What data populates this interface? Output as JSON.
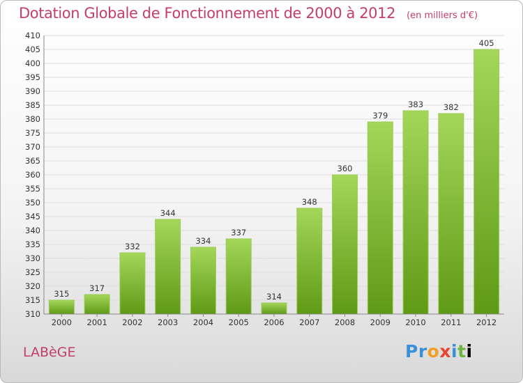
{
  "header": {
    "title": "Dotation Globale de Fonctionnement de 2000 à 2012",
    "unit": "(en milliers d'€)"
  },
  "footer": {
    "commune": "LABèGE",
    "logo_letters": [
      "P",
      "r",
      "o",
      "x",
      "i",
      "t",
      "i"
    ]
  },
  "colors": {
    "title": "#c43d6b",
    "bar_top": "#a4d65a",
    "bar_bottom": "#5f9a16",
    "grid": "#dddddd",
    "axis": "#888888"
  },
  "chart_data": {
    "type": "bar",
    "title": "Dotation Globale de Fonctionnement de 2000 à 2012",
    "subtitle": "(en milliers d'€)",
    "xlabel": "",
    "ylabel": "",
    "categories": [
      "2000",
      "2001",
      "2002",
      "2003",
      "2004",
      "2005",
      "2006",
      "2007",
      "2008",
      "2009",
      "2010",
      "2011",
      "2012"
    ],
    "values": [
      315,
      317,
      332,
      344,
      334,
      337,
      314,
      348,
      360,
      379,
      383,
      382,
      405
    ],
    "ylim": [
      310,
      410
    ],
    "ytick_step": 5,
    "grid": true,
    "legend": "none"
  }
}
